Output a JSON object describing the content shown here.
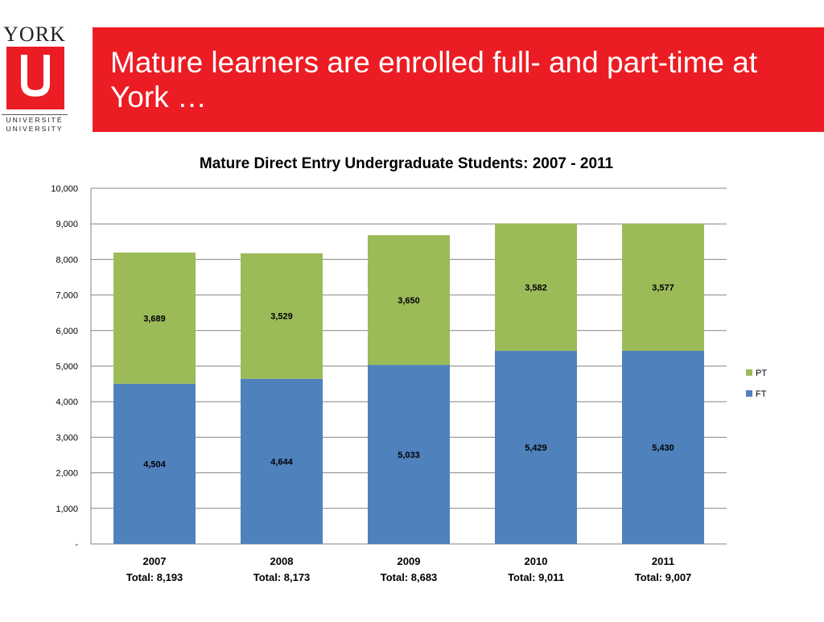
{
  "logo": {
    "wordmark": "YORK",
    "line1": "UNIVERSITÉ",
    "line2": "UNIVERSITY",
    "letter": "U"
  },
  "header": {
    "title": "Mature learners are enrolled full- and part-time at York …"
  },
  "colors": {
    "banner": "#ec1c24",
    "ft": "#4f81bd",
    "pt": "#9bbb59",
    "grid": "#868686"
  },
  "chart_data": {
    "type": "bar",
    "stacked": true,
    "title": "Mature Direct Entry Undergraduate Students: 2007 - 2011",
    "categories": [
      "2007",
      "2008",
      "2009",
      "2010",
      "2011"
    ],
    "category_sublabels": [
      "Total: 8,193",
      "Total: 8,173",
      "Total: 8,683",
      "Total: 9,011",
      "Total: 9,007"
    ],
    "series": [
      {
        "name": "FT",
        "values": [
          4504,
          4644,
          5033,
          5429,
          5430
        ],
        "labels": [
          "4,504",
          "4,644",
          "5,033",
          "5,429",
          "5,430"
        ]
      },
      {
        "name": "PT",
        "values": [
          3689,
          3529,
          3650,
          3582,
          3577
        ],
        "labels": [
          "3,689",
          "3,529",
          "3,650",
          "3,582",
          "3,577"
        ]
      }
    ],
    "ylim": [
      0,
      10000
    ],
    "yticks": [
      0,
      1000,
      2000,
      3000,
      4000,
      5000,
      6000,
      7000,
      8000,
      9000,
      10000
    ],
    "ytick_labels": [
      "-",
      "1,000",
      "2,000",
      "3,000",
      "4,000",
      "5,000",
      "6,000",
      "7,000",
      "8,000",
      "9,000",
      "10,000"
    ],
    "grid": true,
    "legend": {
      "position": "right",
      "order": [
        "PT",
        "FT"
      ]
    }
  }
}
